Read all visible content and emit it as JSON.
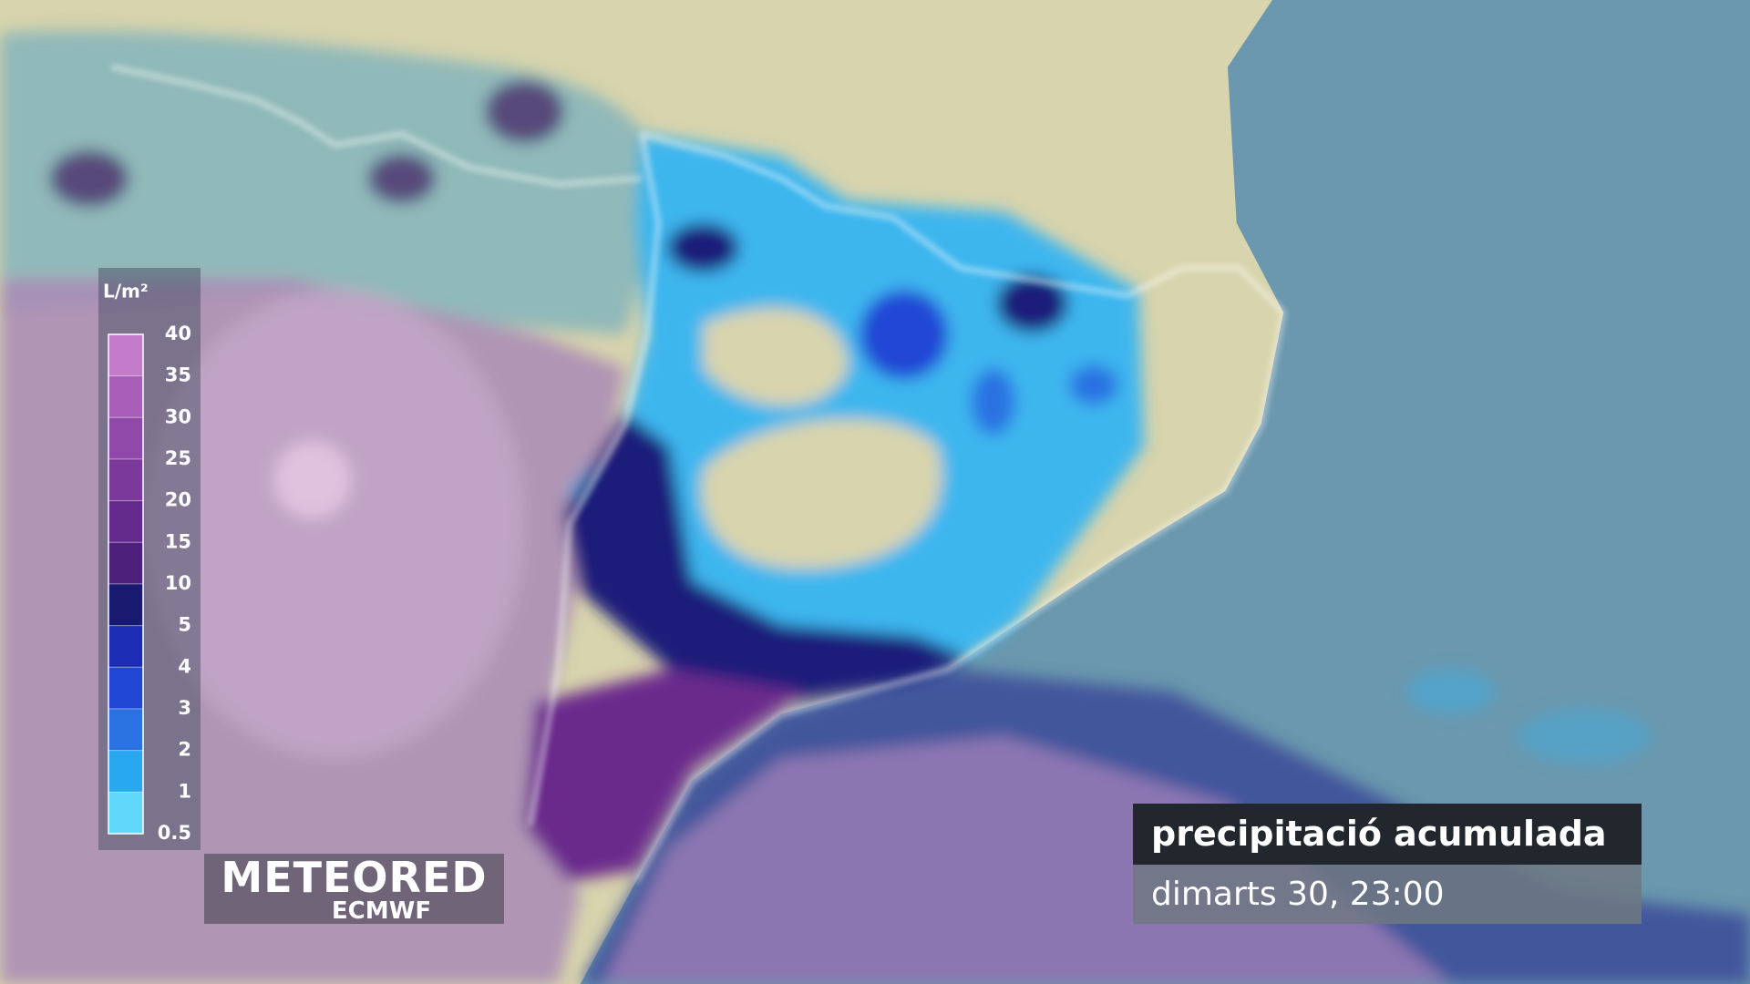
{
  "legend": {
    "unit": "L/m²",
    "ticks": [
      40,
      35,
      30,
      25,
      20,
      15,
      10,
      5,
      4,
      3,
      2,
      1,
      0.5
    ],
    "colors": [
      "#c47cca",
      "#a95fb7",
      "#9049a8",
      "#7b3a9b",
      "#63298b",
      "#4c1f7a",
      "#171a6e",
      "#1c2cb4",
      "#2046d6",
      "#2a72e2",
      "#28a8ef",
      "#5fd8f9"
    ]
  },
  "logo": {
    "brand": "METEORED",
    "source": "ECMWF"
  },
  "info": {
    "title": "precipitació acumulada",
    "date": "dimarts 30, 23:00"
  }
}
